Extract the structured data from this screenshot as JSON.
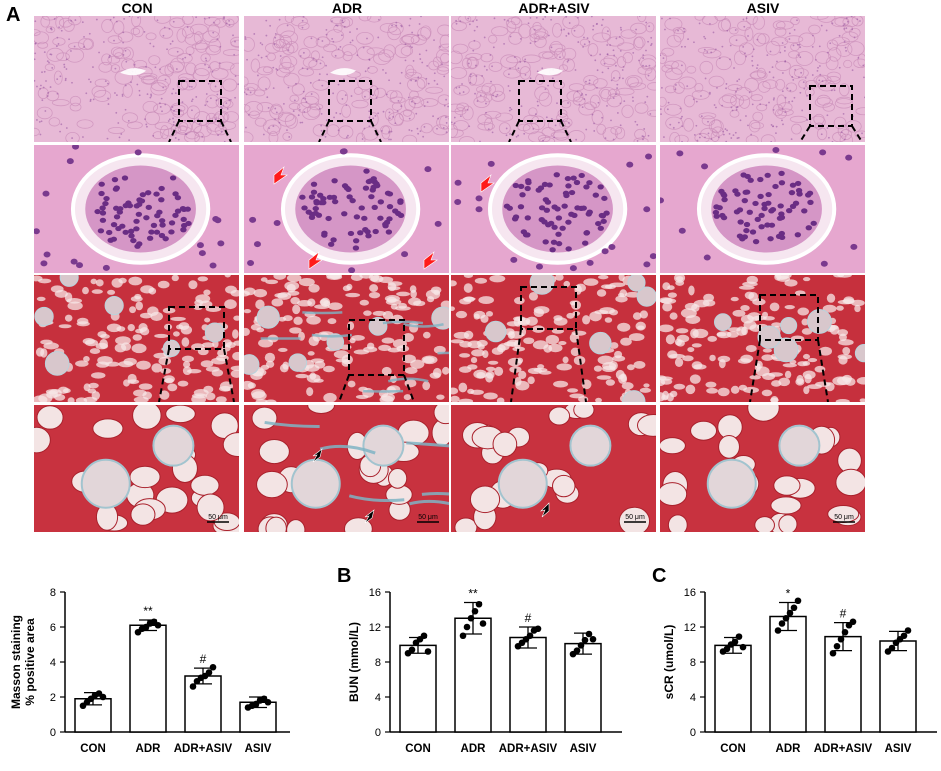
{
  "panel_a": {
    "letter": "A",
    "columns": [
      "CON",
      "ADR",
      "ADR+ASIV",
      "ASIV"
    ],
    "rows": [
      {
        "stain": "he",
        "magnification": "low"
      },
      {
        "stain": "he",
        "magnification": "high"
      },
      {
        "stain": "masson",
        "magnification": "low"
      },
      {
        "stain": "masson",
        "magnification": "high"
      }
    ],
    "masson_scalebar_label": "50 μm",
    "colors": {
      "he_bg": "#e7b9d6",
      "he_nuclei": "#6a2d84",
      "masson_bg": "#c6303d",
      "masson_fibrosis": "#7fb4c4",
      "arrow_red": "#ff1a1a",
      "arrow_black": "#000000"
    }
  },
  "chart_data": [
    {
      "panel": "",
      "type": "bar",
      "categories": [
        "CON",
        "ADR",
        "ADR+ASIV",
        "ASIV"
      ],
      "values": [
        1.9,
        6.1,
        3.2,
        1.7
      ],
      "errors": [
        0.35,
        0.3,
        0.45,
        0.3
      ],
      "points": [
        [
          1.5,
          1.7,
          1.9,
          2.1,
          2.2,
          2.0
        ],
        [
          5.7,
          5.9,
          6.0,
          6.2,
          6.3,
          6.1
        ],
        [
          2.6,
          2.9,
          3.1,
          3.2,
          3.4,
          3.7
        ],
        [
          1.4,
          1.5,
          1.6,
          1.8,
          1.9,
          1.7
        ]
      ],
      "annotations": [
        "",
        "**",
        "#",
        ""
      ],
      "ylabel": "Masson staining\n% positive area",
      "ylim": [
        0,
        8
      ],
      "yticks": [
        0,
        2,
        4,
        6,
        8
      ]
    },
    {
      "panel": "B",
      "type": "bar",
      "categories": [
        "CON",
        "ADR",
        "ADR+ASIV",
        "ASIV"
      ],
      "values": [
        9.9,
        13.0,
        10.8,
        10.1
      ],
      "errors": [
        0.9,
        1.8,
        1.2,
        1.2
      ],
      "points": [
        [
          9.0,
          9.4,
          10.2,
          10.6,
          11.0,
          9.2
        ],
        [
          11.0,
          12.0,
          13.0,
          13.8,
          14.6,
          12.4
        ],
        [
          9.8,
          10.2,
          10.6,
          11.0,
          11.6,
          11.8
        ],
        [
          8.9,
          9.3,
          9.9,
          10.5,
          11.2,
          10.6
        ]
      ],
      "annotations": [
        "",
        "**",
        "#",
        ""
      ],
      "ylabel": "BUN (mmol/L)",
      "ylim": [
        0,
        16
      ],
      "yticks": [
        0,
        4,
        8,
        12,
        16
      ]
    },
    {
      "panel": "C",
      "type": "bar",
      "categories": [
        "CON",
        "ADR",
        "ADR+ASIV",
        "ASIV"
      ],
      "values": [
        9.9,
        13.2,
        10.9,
        10.4
      ],
      "errors": [
        0.9,
        1.6,
        1.6,
        1.1
      ],
      "points": [
        [
          9.2,
          9.5,
          10.0,
          10.3,
          10.9,
          9.7
        ],
        [
          11.6,
          12.4,
          13.0,
          13.6,
          14.2,
          15.0
        ],
        [
          9.0,
          9.8,
          10.6,
          11.4,
          12.2,
          12.6
        ],
        [
          9.2,
          9.6,
          10.2,
          10.6,
          11.0,
          11.6
        ]
      ],
      "annotations": [
        "",
        "*",
        "#",
        ""
      ],
      "ylabel": "sCR (umol/L)",
      "ylim": [
        0,
        16
      ],
      "yticks": [
        0,
        4,
        8,
        12,
        16
      ]
    }
  ]
}
